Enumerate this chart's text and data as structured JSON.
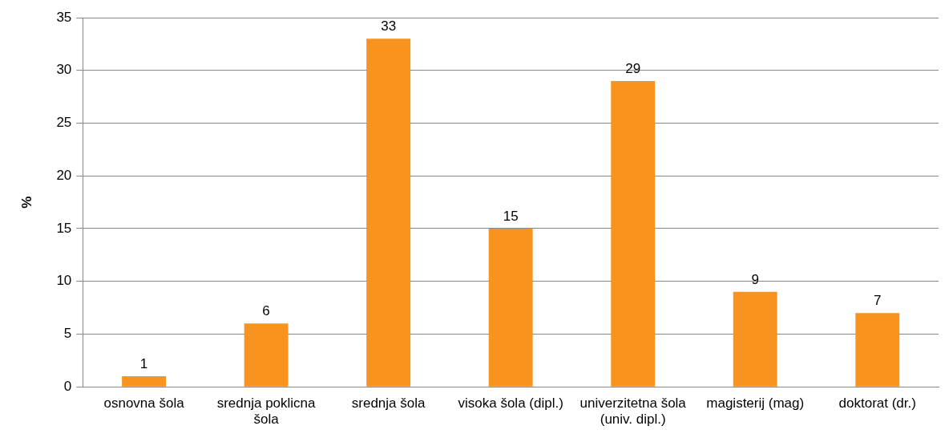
{
  "chart_data": {
    "type": "bar",
    "ylabel": "%",
    "categories": [
      "osnovna šola",
      "srednja poklicna šola",
      "srednja šola",
      "visoka šola (dipl.)",
      "univerzitetna šola (univ. dipl.)",
      "magisterij (mag)",
      "doktorat (dr.)"
    ],
    "values": [
      1,
      6,
      33,
      15,
      29,
      9,
      7
    ],
    "color": "#f7931e",
    "ylim": [
      0,
      35
    ],
    "yticks": [
      0,
      5,
      10,
      15,
      20,
      25,
      30,
      35
    ],
    "grid": "y",
    "data_labels": true,
    "legend": false
  }
}
